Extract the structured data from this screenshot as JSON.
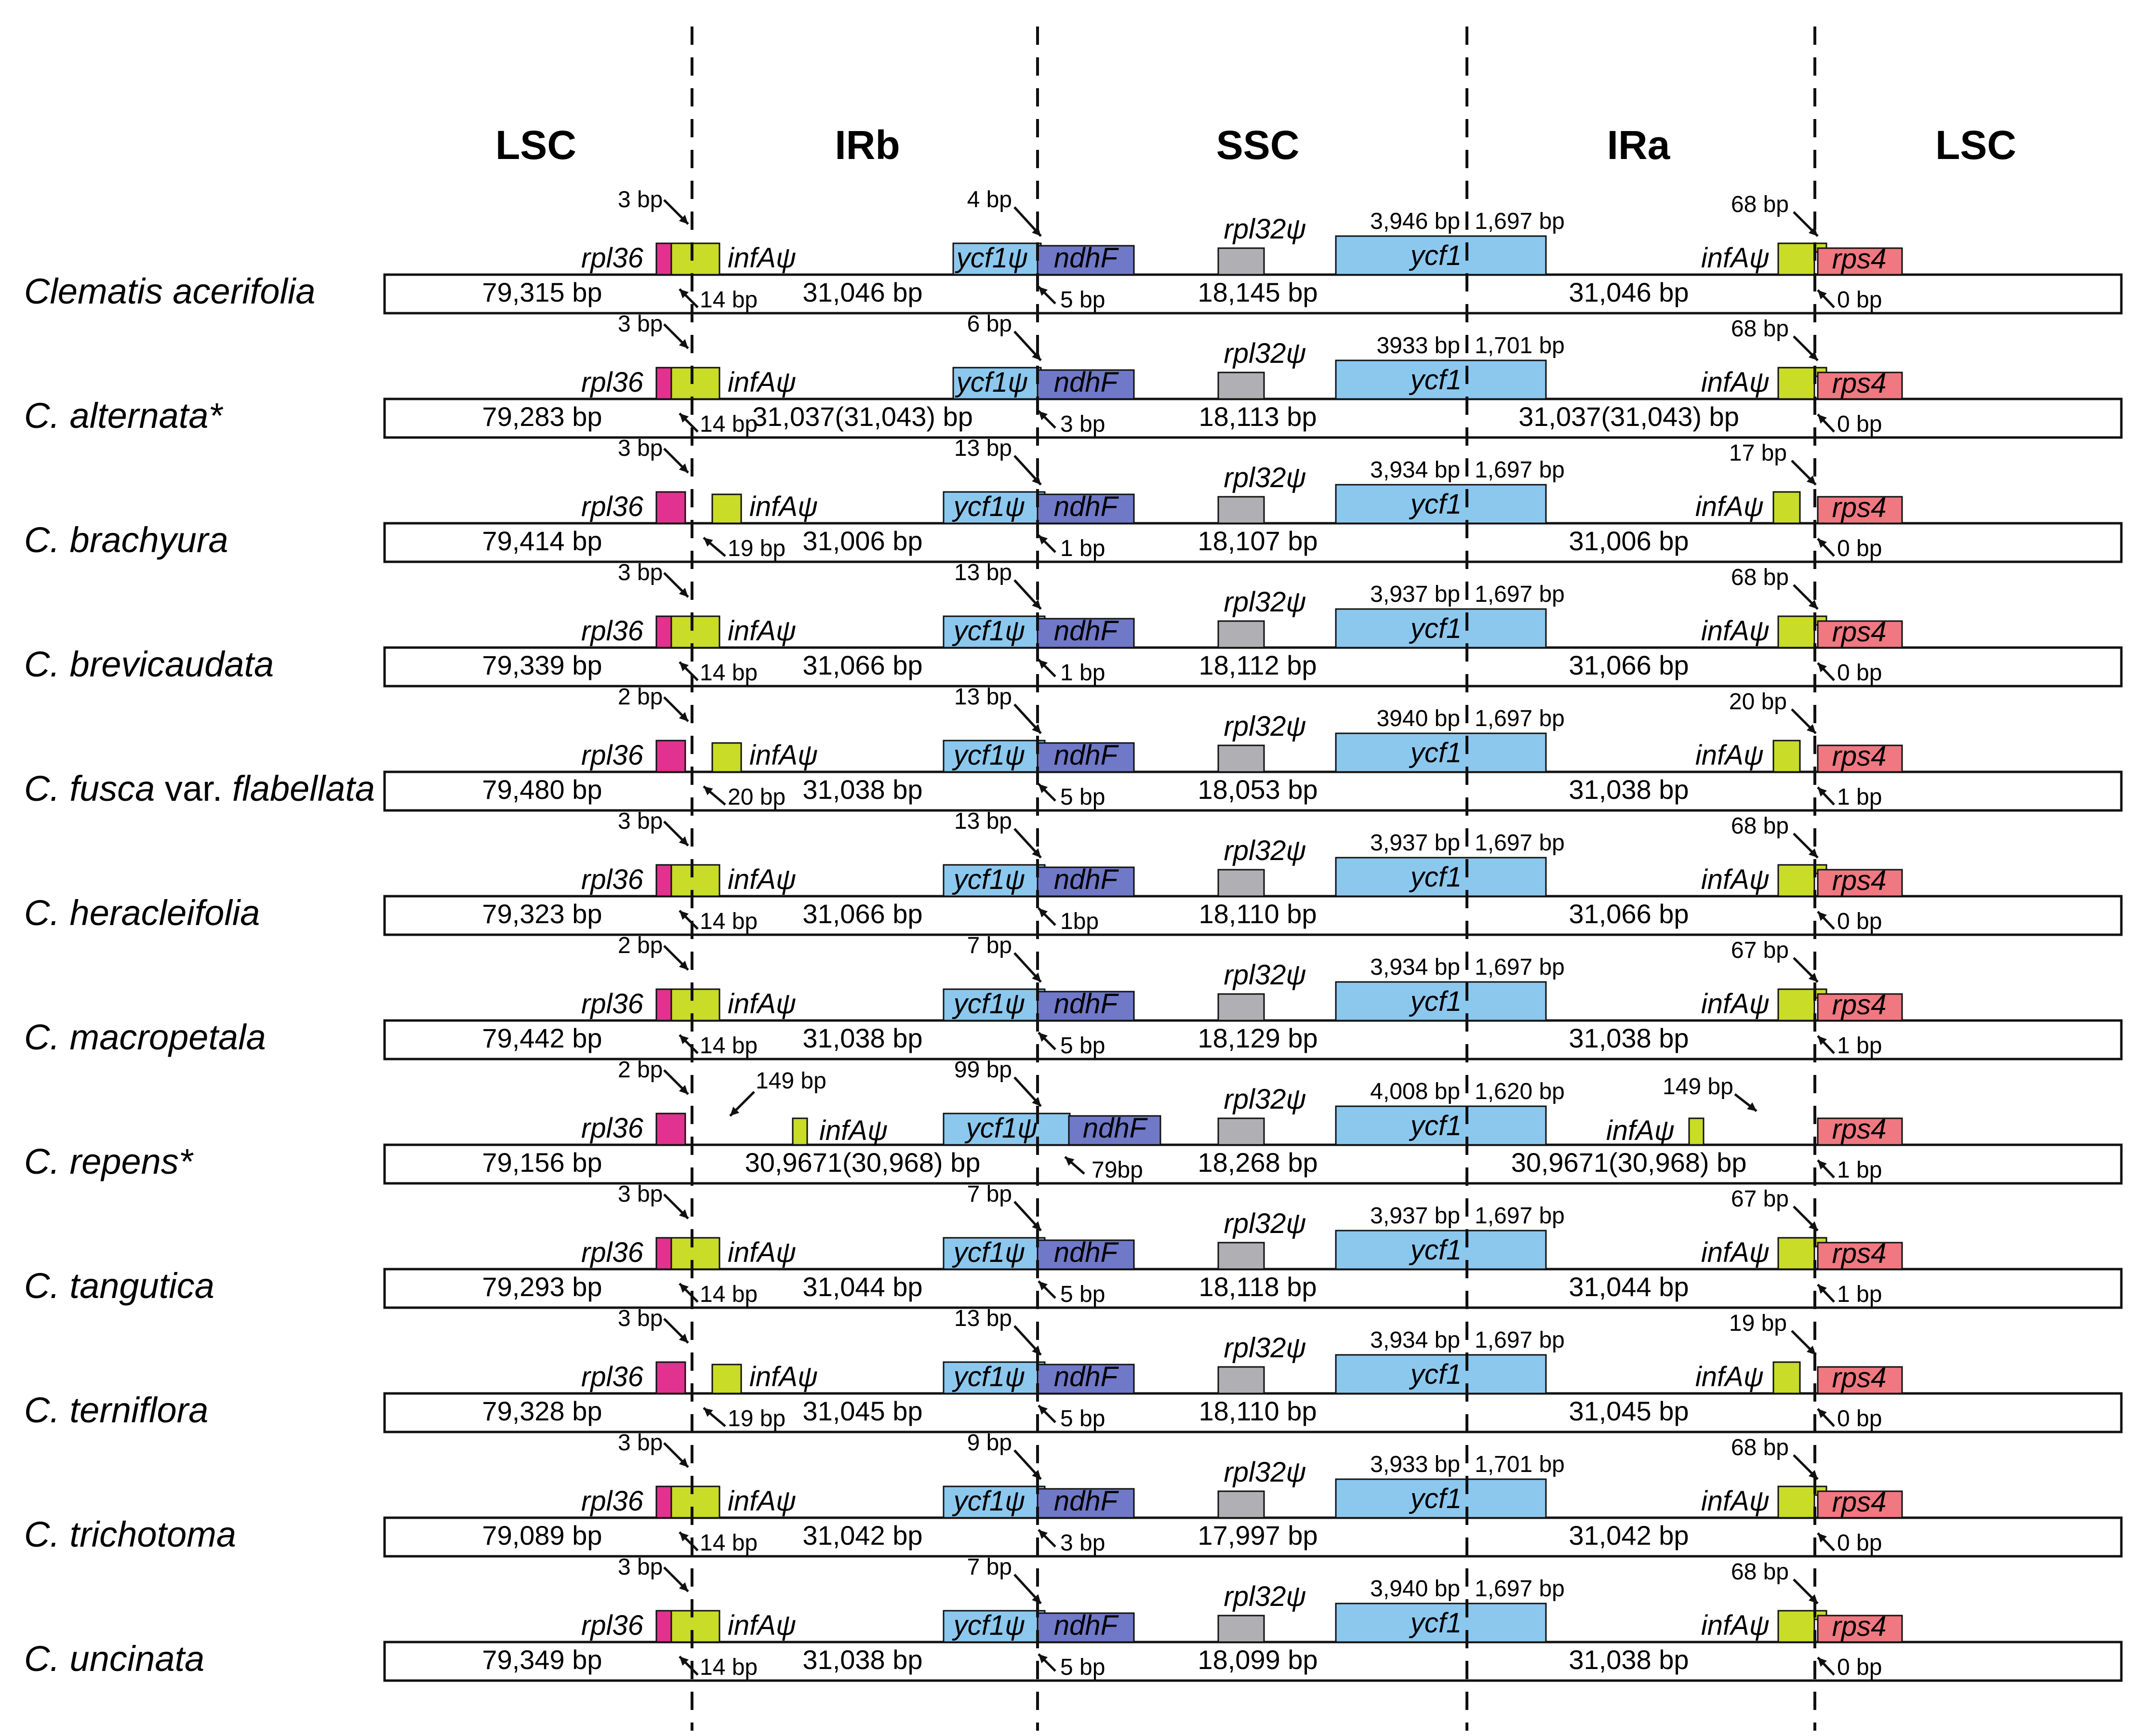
{
  "regions": [
    "LSC",
    "IRb",
    "SSC",
    "IRa",
    "LSC"
  ],
  "colors": {
    "rpl36": "#e0328e",
    "infA": "#c8dc28",
    "ycf1": "#8cc8ee",
    "ndhF": "#7078c8",
    "rpl32": "#b0b0b4",
    "rps4": "#f07880",
    "line": "#111111"
  },
  "species": [
    {
      "name_parts": [
        {
          "text": "Clematis acerifolia",
          "italic": true
        }
      ],
      "lsc": "79,315 bp",
      "irb": "31,046 bp",
      "ssc": "18,145 bp",
      "ira": "31,046 bp",
      "rpl36_lbl": "rpl36",
      "rpl36_bp": "3 bp",
      "infA_lbl": "infAψ",
      "infA_j": "14 bp",
      "ycf1p_lbl": "ycf1ψ",
      "ycf1p_bp": "4 bp",
      "ndhF_lbl": "ndhF",
      "ndhF_j": "5 bp",
      "rpl32_lbl": "rpl32ψ",
      "ycf1_lbl": "ycf1",
      "ycf1_l": "3,946 bp",
      "ycf1_r": "1,697 bp",
      "infA2_lbl": "infAψ",
      "infA2_bp": "68 bp",
      "rps4_lbl": "rps4",
      "rps4_j": "0 bp"
    },
    {
      "name_parts": [
        {
          "text": "C. alternata*",
          "italic": true
        }
      ],
      "lsc": "79,283  bp",
      "irb": "31,037(31,043) bp",
      "ssc": "18,113 bp",
      "ira": "31,037(31,043) bp",
      "rpl36_lbl": "rpl36",
      "rpl36_bp": "3 bp",
      "infA_lbl": "infAψ",
      "infA_j": "14 bp",
      "ycf1p_lbl": "ycf1ψ",
      "ycf1p_bp": "6 bp",
      "ndhF_lbl": "ndhF",
      "ndhF_j": "3 bp",
      "rpl32_lbl": "rpl32ψ",
      "ycf1_lbl": "ycf1",
      "ycf1_l": "3933 bp",
      "ycf1_r": "1,701 bp",
      "infA2_lbl": "infAψ",
      "infA2_bp": "68 bp",
      "rps4_lbl": "rps4",
      "rps4_j": "0 bp"
    },
    {
      "name_parts": [
        {
          "text": "C. brachyura",
          "italic": true
        }
      ],
      "lsc": "79,414 bp",
      "irb": "31,006 bp",
      "ssc": "18,107 bp",
      "ira": "31,006 bp",
      "rpl36_lbl": "rpl36",
      "rpl36_bp": "3 bp",
      "infA_lbl": "infAψ",
      "infA_j": "19 bp",
      "ycf1p_lbl": "ycf1ψ",
      "ycf1p_bp": "13 bp",
      "ndhF_lbl": "ndhF",
      "ndhF_j": "1 bp",
      "rpl32_lbl": "rpl32ψ",
      "ycf1_lbl": "ycf1",
      "ycf1_l": "3,934 bp",
      "ycf1_r": "1,697 bp",
      "infA2_lbl": "infAψ",
      "infA2_bp": "17 bp",
      "rps4_lbl": "rps4",
      "rps4_j": "0 bp"
    },
    {
      "name_parts": [
        {
          "text": "C. brevicaudata",
          "italic": true
        }
      ],
      "lsc": "79,339 bp",
      "irb": "31,066 bp",
      "ssc": "18,112 bp",
      "ira": "31,066 bp",
      "rpl36_lbl": "rpl36",
      "rpl36_bp": "3 bp",
      "infA_lbl": "infAψ",
      "infA_j": "14 bp",
      "ycf1p_lbl": "ycf1ψ",
      "ycf1p_bp": "13 bp",
      "ndhF_lbl": "ndhF",
      "ndhF_j": "1 bp",
      "rpl32_lbl": "rpl32ψ",
      "ycf1_lbl": "ycf1",
      "ycf1_l": "3,937 bp",
      "ycf1_r": "1,697 bp",
      "infA2_lbl": "infAψ",
      "infA2_bp": "68 bp",
      "rps4_lbl": "rps4",
      "rps4_j": "0 bp"
    },
    {
      "name_parts": [
        {
          "text": "C. fusca ",
          "italic": true
        },
        {
          "text": "var.",
          "italic": false
        },
        {
          "text": " flabellata",
          "italic": true
        }
      ],
      "lsc": "79,480 bp",
      "irb": "31,038 bp",
      "ssc": "18,053 bp",
      "ira": "31,038 bp",
      "rpl36_lbl": "rpl36",
      "rpl36_bp": "2 bp",
      "infA_lbl": "infAψ",
      "infA_j": "20 bp",
      "ycf1p_lbl": "ycf1ψ",
      "ycf1p_bp": "13 bp",
      "ndhF_lbl": "ndhF",
      "ndhF_j": "5 bp",
      "rpl32_lbl": "rpl32ψ",
      "ycf1_lbl": "ycf1",
      "ycf1_l": "3940 bp",
      "ycf1_r": "1,697 bp",
      "infA2_lbl": "infAψ",
      "infA2_bp": "20 bp",
      "rps4_lbl": "rps4",
      "rps4_j": "1 bp"
    },
    {
      "name_parts": [
        {
          "text": "C. heracleifolia",
          "italic": true
        }
      ],
      "lsc": "79,323 bp",
      "irb": "31,066 bp",
      "ssc": "18,110 bp",
      "ira": "31,066 bp",
      "rpl36_lbl": "rpl36",
      "rpl36_bp": "3 bp",
      "infA_lbl": "infAψ",
      "infA_j": "14 bp",
      "ycf1p_lbl": "ycf1ψ",
      "ycf1p_bp": "13 bp",
      "ndhF_lbl": "ndhF",
      "ndhF_j": "1bp",
      "rpl32_lbl": "rpl32ψ",
      "ycf1_lbl": "ycf1",
      "ycf1_l": "3,937 bp",
      "ycf1_r": "1,697 bp",
      "infA2_lbl": "infAψ",
      "infA2_bp": "68 bp",
      "rps4_lbl": "rps4",
      "rps4_j": "0 bp"
    },
    {
      "name_parts": [
        {
          "text": "C. macropetala",
          "italic": true
        }
      ],
      "lsc": "79,442 bp",
      "irb": "31,038 bp",
      "ssc": "18,129 bp",
      "ira": "31,038 bp",
      "rpl36_lbl": "rpl36",
      "rpl36_bp": "2 bp",
      "infA_lbl": "infAψ",
      "infA_j": "14 bp",
      "ycf1p_lbl": "ycf1ψ",
      "ycf1p_bp": "7 bp",
      "ndhF_lbl": "ndhF",
      "ndhF_j": "5 bp",
      "rpl32_lbl": "rpl32ψ",
      "ycf1_lbl": "ycf1",
      "ycf1_l": "3,934 bp",
      "ycf1_r": "1,697 bp",
      "infA2_lbl": "infAψ",
      "infA2_bp": "67 bp",
      "rps4_lbl": "rps4",
      "rps4_j": "1 bp"
    },
    {
      "name_parts": [
        {
          "text": "C. repens*",
          "italic": true
        }
      ],
      "lsc": "79,156 bp",
      "irb": "30,9671(30,968) bp",
      "ssc": "18,268 bp",
      "ira": "30,9671(30,968) bp",
      "rpl36_lbl": "rpl36",
      "rpl36_bp": "2 bp",
      "infA_lbl": "infAψ",
      "infA_j": "149 bp",
      "ycf1p_lbl": "ycf1ψ",
      "ycf1p_bp": "99 bp",
      "ndhF_lbl": "ndhF",
      "ndhF_j": "79bp",
      "rpl32_lbl": "rpl32ψ",
      "ycf1_lbl": "ycf1",
      "ycf1_l": "4,008 bp",
      "ycf1_r": "1,620 bp",
      "infA2_lbl": "infAψ",
      "infA2_bp": "149 bp",
      "rps4_lbl": "rps4",
      "rps4_j": "1 bp"
    },
    {
      "name_parts": [
        {
          "text": "C. tangutica",
          "italic": true
        }
      ],
      "lsc": "79,293 bp",
      "irb": "31,044 bp",
      "ssc": "18,118 bp",
      "ira": "31,044 bp",
      "rpl36_lbl": "rpl36",
      "rpl36_bp": "3 bp",
      "infA_lbl": "infAψ",
      "infA_j": "14 bp",
      "ycf1p_lbl": "ycf1ψ",
      "ycf1p_bp": "7 bp",
      "ndhF_lbl": "ndhF",
      "ndhF_j": "5 bp",
      "rpl32_lbl": "rpl32ψ",
      "ycf1_lbl": "ycf1",
      "ycf1_l": "3,937 bp",
      "ycf1_r": "1,697 bp",
      "infA2_lbl": "infAψ",
      "infA2_bp": "67 bp",
      "rps4_lbl": "rps4",
      "rps4_j": "1 bp"
    },
    {
      "name_parts": [
        {
          "text": "C. terniflora",
          "italic": true
        }
      ],
      "lsc": "79,328 bp",
      "irb": "31,045 bp",
      "ssc": "18,110 bp",
      "ira": "31,045 bp",
      "rpl36_lbl": "rpl36",
      "rpl36_bp": "3 bp",
      "infA_lbl": "infAψ",
      "infA_j": "19 bp",
      "ycf1p_lbl": "ycf1ψ",
      "ycf1p_bp": "13 bp",
      "ndhF_lbl": "ndhF",
      "ndhF_j": "5 bp",
      "rpl32_lbl": "rpl32ψ",
      "ycf1_lbl": "ycf1",
      "ycf1_l": "3,934 bp",
      "ycf1_r": "1,697 bp",
      "infA2_lbl": "infAψ",
      "infA2_bp": "19 bp",
      "rps4_lbl": "rps4",
      "rps4_j": "0 bp"
    },
    {
      "name_parts": [
        {
          "text": "C. trichotoma",
          "italic": true
        }
      ],
      "lsc": "79,089 bp",
      "irb": "31,042 bp",
      "ssc": "17,997 bp",
      "ira": "31,042 bp",
      "rpl36_lbl": "rpl36",
      "rpl36_bp": "3 bp",
      "infA_lbl": "infAψ",
      "infA_j": "14 bp",
      "ycf1p_lbl": "ycf1ψ",
      "ycf1p_bp": "9 bp",
      "ndhF_lbl": "ndhF",
      "ndhF_j": "3 bp",
      "rpl32_lbl": "rpl32ψ",
      "ycf1_lbl": "ycf1",
      "ycf1_l": "3,933 bp",
      "ycf1_r": "1,701 bp",
      "infA2_lbl": "infAψ",
      "infA2_bp": "68 bp",
      "rps4_lbl": "rps4",
      "rps4_j": "0 bp"
    },
    {
      "name_parts": [
        {
          "text": "C. uncinata",
          "italic": true
        }
      ],
      "lsc": "79,349 bp",
      "irb": "31,038 bp",
      "ssc": "18,099 bp",
      "ira": "31,038 bp",
      "rpl36_lbl": "rpl36",
      "rpl36_bp": "3 bp",
      "infA_lbl": "infAψ",
      "infA_j": "14 bp",
      "ycf1p_lbl": "ycf1ψ",
      "ycf1p_bp": "7 bp",
      "ndhF_lbl": "ndhF",
      "ndhF_j": "5 bp",
      "rpl32_lbl": "rpl32ψ",
      "ycf1_lbl": "ycf1",
      "ycf1_l": "3,940 bp",
      "ycf1_r": "1,697 bp",
      "infA2_lbl": "infAψ",
      "infA2_bp": "68 bp",
      "rps4_lbl": "rps4",
      "rps4_j": "0 bp"
    }
  ]
}
